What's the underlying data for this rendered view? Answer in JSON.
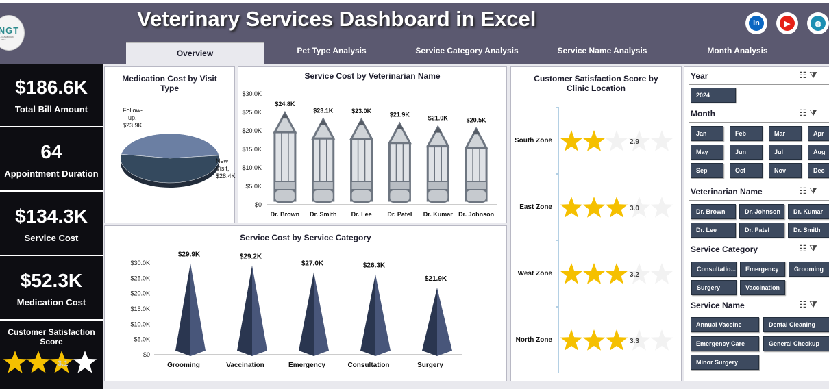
{
  "header": {
    "title": "Veterinary Services Dashboard in Excel",
    "logo_text": "NGT",
    "logo_sub": "EXCEL DASHBOARD TEMPLATES"
  },
  "social": [
    "linkedin-icon",
    "youtube-icon",
    "globe-icon"
  ],
  "tabs": [
    "Overview",
    "Pet Type Analysis",
    "Service Category Analysis",
    "Service Name Analysis",
    "Month Analysis"
  ],
  "kpis": [
    {
      "value": "$186.6K",
      "label": "Total Bill Amount"
    },
    {
      "value": "64",
      "label": "Appointment Duration"
    },
    {
      "value": "$134.3K",
      "label": "Service Cost"
    },
    {
      "value": "$52.3K",
      "label": "Medication Cost"
    },
    {
      "value": "3.1",
      "label": "Customer Satisfaction Score"
    }
  ],
  "panels": {
    "pie_title": "Medication Cost by Visit Type",
    "vet_title": "Service Cost by Veterinarian Name",
    "cat_title": "Service Cost by Service Category",
    "sat_title": "Customer Satisfaction Score by Clinic Location"
  },
  "chart_data": [
    {
      "type": "pie",
      "title": "Medication Cost by Visit Type",
      "categories": [
        "Follow-up",
        "New Visit"
      ],
      "values": [
        23.9,
        28.4
      ],
      "data_labels": [
        "Follow-up, $23.9K",
        "New Visit, $28.4K"
      ],
      "colors": [
        "#6b7fa3",
        "#34495e"
      ]
    },
    {
      "type": "bar",
      "title": "Service Cost by Veterinarian Name",
      "categories": [
        "Dr. Brown",
        "Dr. Smith",
        "Dr. Lee",
        "Dr. Patel",
        "Dr. Kumar",
        "Dr. Johnson"
      ],
      "values": [
        24.8,
        23.1,
        23.0,
        21.9,
        21.0,
        20.5
      ],
      "data_labels": [
        "$24.8K",
        "$23.1K",
        "$23.0K",
        "$21.9K",
        "$21.0K",
        "$20.5K"
      ],
      "yticks": [
        "$0",
        "$5.0K",
        "$10.0K",
        "$15.0K",
        "$20.0K",
        "$25.0K",
        "$30.0K"
      ],
      "ylim": [
        0,
        30
      ]
    },
    {
      "type": "bar",
      "title": "Service Cost by Service Category",
      "categories": [
        "Grooming",
        "Vaccination",
        "Emergency",
        "Consultation",
        "Surgery"
      ],
      "values": [
        29.9,
        29.2,
        27.0,
        26.3,
        21.9
      ],
      "data_labels": [
        "$29.9K",
        "$29.2K",
        "$27.0K",
        "$26.3K",
        "$21.9K"
      ],
      "yticks": [
        "$0",
        "$5.0K",
        "$10.0K",
        "$15.0K",
        "$20.0K",
        "$25.0K",
        "$30.0K"
      ],
      "ylim": [
        0,
        30
      ]
    },
    {
      "type": "bar",
      "title": "Customer Satisfaction Score by Clinic Location",
      "categories": [
        "South Zone",
        "East Zone",
        "West Zone",
        "North Zone"
      ],
      "values": [
        2.9,
        3.0,
        3.2,
        3.3
      ],
      "data_labels": [
        "2.9",
        "3.0",
        "3.2",
        "3.3"
      ],
      "max": 5
    }
  ],
  "slicers": {
    "year": {
      "label": "Year",
      "items": [
        "2024"
      ]
    },
    "month": {
      "label": "Month",
      "items": [
        "Jan",
        "Feb",
        "Mar",
        "Apr",
        "May",
        "Jun",
        "Jul",
        "Aug",
        "Sep",
        "Oct",
        "Nov",
        "Dec"
      ]
    },
    "vet": {
      "label": "Veterinarian Name",
      "items": [
        "Dr. Brown",
        "Dr. Johnson",
        "Dr. Kumar",
        "Dr. Lee",
        "Dr. Patel",
        "Dr. Smith"
      ]
    },
    "category": {
      "label": "Service Category",
      "items": [
        "Consultatio...",
        "Emergency",
        "Grooming",
        "Surgery",
        "Vaccination"
      ]
    },
    "service": {
      "label": "Service Name",
      "items": [
        "Annual Vaccine",
        "Dental Cleaning",
        "Emergency Care",
        "General Checkup",
        "Minor Surgery"
      ]
    }
  },
  "colors": {
    "header_bg": "#5b5970",
    "kpi_bg": "#0d0d12",
    "chip_bg": "#3d4a5f",
    "star": "#f5c000",
    "pencil": "#6e7681",
    "cone": "#2f3b54"
  }
}
